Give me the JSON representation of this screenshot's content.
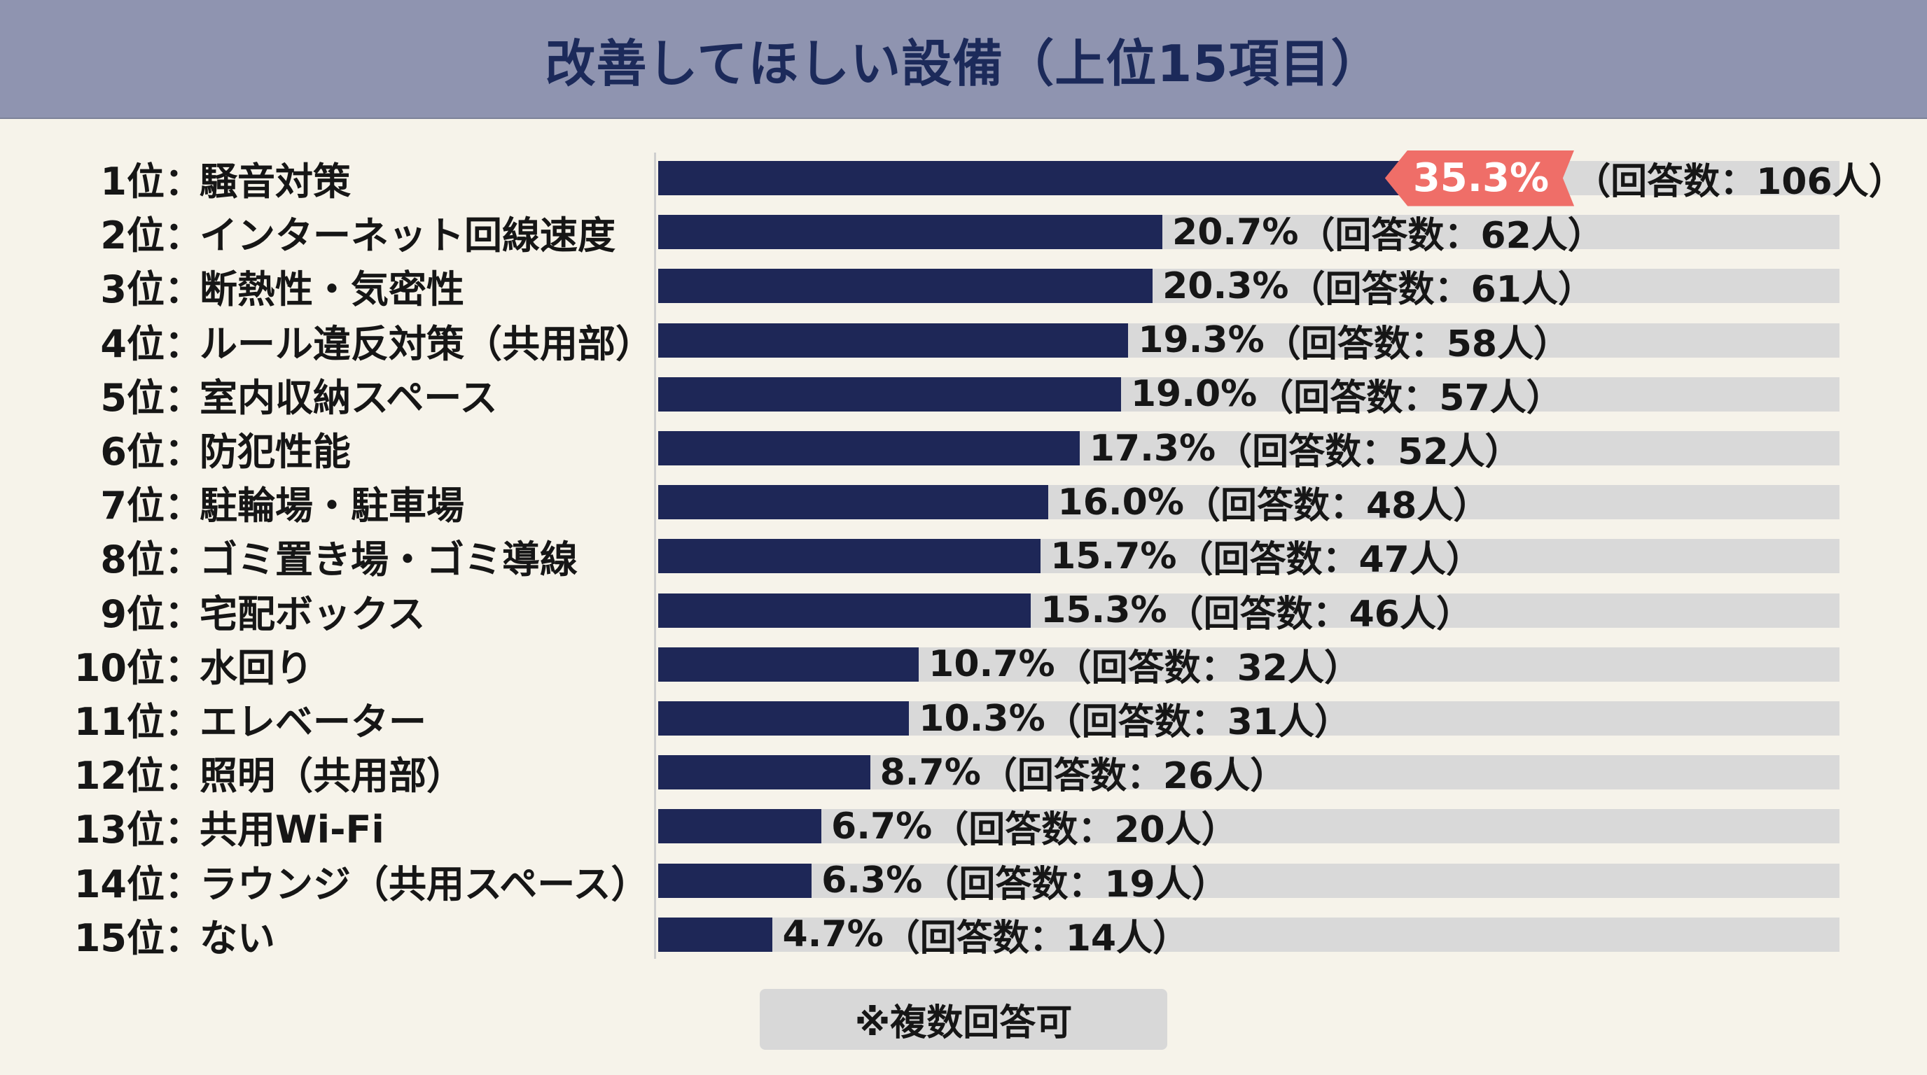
{
  "chart_data": {
    "type": "bar",
    "orientation": "horizontal",
    "title": "改善してほしい設備（上位15項目）",
    "ranks": [
      "1位",
      "2位",
      "3位",
      "4位",
      "5位",
      "6位",
      "7位",
      "8位",
      "9位",
      "10位",
      "11位",
      "12位",
      "13位",
      "14位",
      "15位"
    ],
    "categories": [
      "騒音対策",
      "インターネット回線速度",
      "断熱性・気密性",
      "ルール違反対策（共用部）",
      "室内収納スペース",
      "防犯性能",
      "駐輪場・駐車場",
      "ゴミ置き場・ゴミ導線",
      "宅配ボックス",
      "水回り",
      "エレベーター",
      "照明（共用部）",
      "共用Wi-Fi",
      "ラウンジ（共用スペース）",
      "ない"
    ],
    "values": [
      35.3,
      20.7,
      20.3,
      19.3,
      19.0,
      17.3,
      16.0,
      15.7,
      15.3,
      10.7,
      10.3,
      8.7,
      6.7,
      6.3,
      4.7
    ],
    "value_labels": [
      "35.3%",
      "20.7%",
      "20.3%",
      "19.3%",
      "19.0%",
      "17.3%",
      "16.0%",
      "15.7%",
      "15.3%",
      "10.7%",
      "10.3%",
      "8.7%",
      "6.7%",
      "6.3%",
      "4.7%"
    ],
    "count_labels": [
      "（回答数：106人）",
      "（回答数：62人）",
      "（回答数：61人）",
      "（回答数：58人）",
      "（回答数：57人）",
      "（回答数：52人）",
      "（回答数：48人）",
      "（回答数：47人）",
      "（回答数：46人）",
      "（回答数：32人）",
      "（回答数：31人）",
      "（回答数：26人）",
      "（回答数：20人）",
      "（回答数：19人）",
      "（回答数：14人）"
    ],
    "xlim": [
      0,
      48.5
    ],
    "grid": false,
    "legend": "none",
    "colors": {
      "bar": "#1e2757",
      "track": "#d9d9d9",
      "highlight": "#ef6e68"
    }
  },
  "separator": "：",
  "footnote": "※複数回答可"
}
